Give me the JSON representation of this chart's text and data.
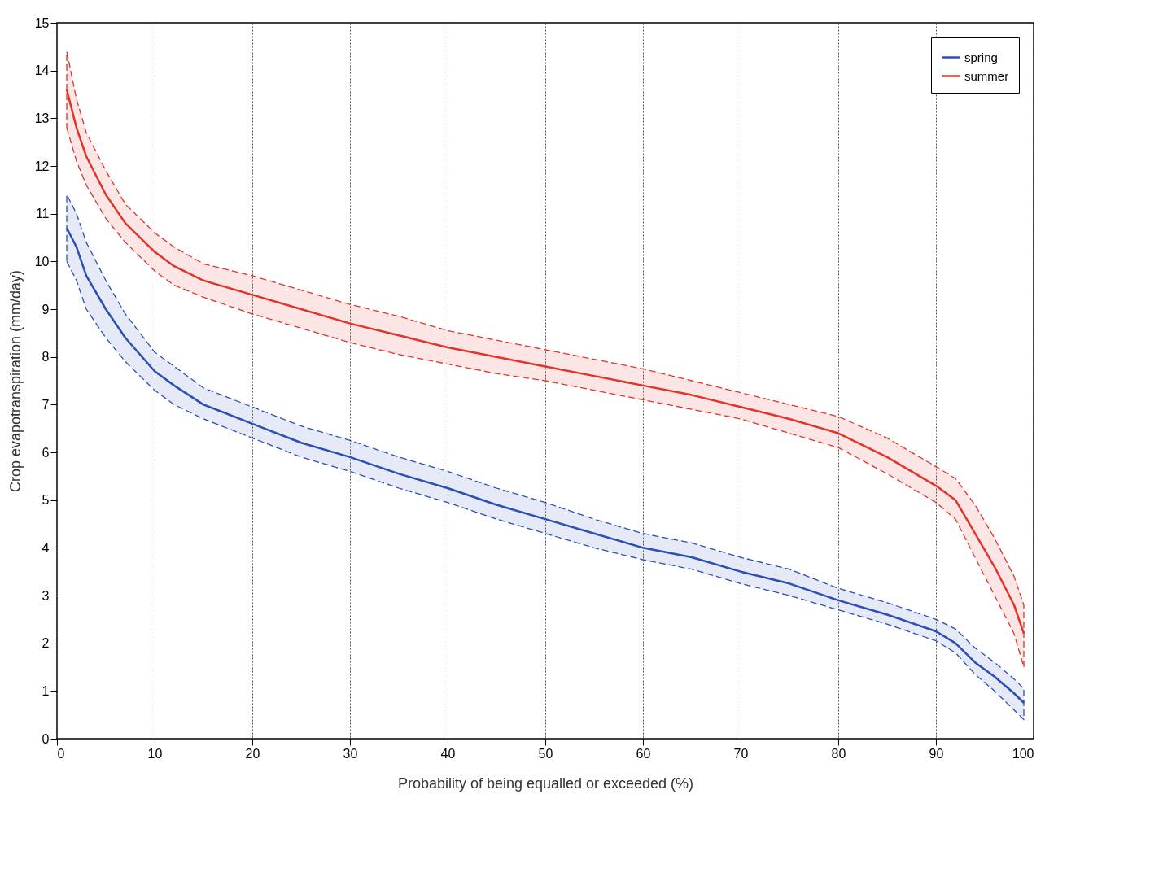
{
  "chart_data": {
    "type": "line",
    "xlabel": "Probability of being equalled or exceeded (%)",
    "ylabel": "Crop evapotranspiration (mm/day)",
    "x": [
      1,
      2,
      3,
      5,
      7,
      10,
      12,
      15,
      20,
      25,
      30,
      35,
      40,
      45,
      50,
      55,
      60,
      65,
      70,
      75,
      80,
      85,
      90,
      92,
      94,
      96,
      98,
      99
    ],
    "series": [
      {
        "name": "spring",
        "color": "#2b4fb5",
        "values": [
          10.7,
          10.3,
          9.7,
          9.0,
          8.4,
          7.7,
          7.4,
          7.0,
          6.6,
          6.2,
          5.9,
          5.55,
          5.25,
          4.9,
          4.6,
          4.3,
          4.0,
          3.8,
          3.5,
          3.25,
          2.9,
          2.6,
          2.25,
          2.0,
          1.6,
          1.3,
          0.95,
          0.75
        ],
        "lower": [
          10.0,
          9.6,
          9.0,
          8.4,
          7.9,
          7.3,
          7.0,
          6.7,
          6.3,
          5.9,
          5.6,
          5.25,
          4.95,
          4.6,
          4.3,
          4.0,
          3.75,
          3.55,
          3.25,
          3.0,
          2.7,
          2.4,
          2.05,
          1.8,
          1.35,
          1.0,
          0.6,
          0.4
        ],
        "upper": [
          11.4,
          11.0,
          10.4,
          9.6,
          8.9,
          8.1,
          7.8,
          7.35,
          6.95,
          6.55,
          6.25,
          5.9,
          5.6,
          5.25,
          4.95,
          4.6,
          4.3,
          4.1,
          3.8,
          3.55,
          3.15,
          2.85,
          2.5,
          2.3,
          1.9,
          1.6,
          1.25,
          1.05
        ]
      },
      {
        "name": "summer",
        "color": "#e0352b",
        "values": [
          13.6,
          12.8,
          12.2,
          11.4,
          10.8,
          10.2,
          9.9,
          9.6,
          9.3,
          9.0,
          8.7,
          8.45,
          8.2,
          8.0,
          7.8,
          7.6,
          7.4,
          7.2,
          6.95,
          6.7,
          6.4,
          5.9,
          5.3,
          5.0,
          4.3,
          3.6,
          2.8,
          2.2
        ],
        "lower": [
          12.8,
          12.1,
          11.6,
          10.9,
          10.4,
          9.8,
          9.5,
          9.25,
          8.9,
          8.6,
          8.3,
          8.05,
          7.85,
          7.65,
          7.5,
          7.3,
          7.1,
          6.9,
          6.7,
          6.4,
          6.1,
          5.55,
          4.95,
          4.6,
          3.8,
          3.0,
          2.2,
          1.5
        ],
        "upper": [
          14.4,
          13.4,
          12.7,
          11.9,
          11.2,
          10.6,
          10.3,
          9.95,
          9.7,
          9.4,
          9.1,
          8.85,
          8.55,
          8.35,
          8.15,
          7.95,
          7.75,
          7.5,
          7.25,
          7.0,
          6.75,
          6.3,
          5.7,
          5.45,
          4.9,
          4.2,
          3.4,
          2.8
        ]
      }
    ],
    "xlim": [
      0,
      100
    ],
    "xticks": [
      0,
      10,
      20,
      30,
      40,
      50,
      60,
      70,
      80,
      90,
      100
    ],
    "ylim": [
      0,
      15
    ],
    "yticks": [
      0,
      1,
      2,
      3,
      4,
      5,
      6,
      7,
      8,
      9,
      10,
      11,
      12,
      13,
      14,
      15
    ],
    "grid": "x",
    "legend": "top right",
    "line_style": "solid"
  }
}
